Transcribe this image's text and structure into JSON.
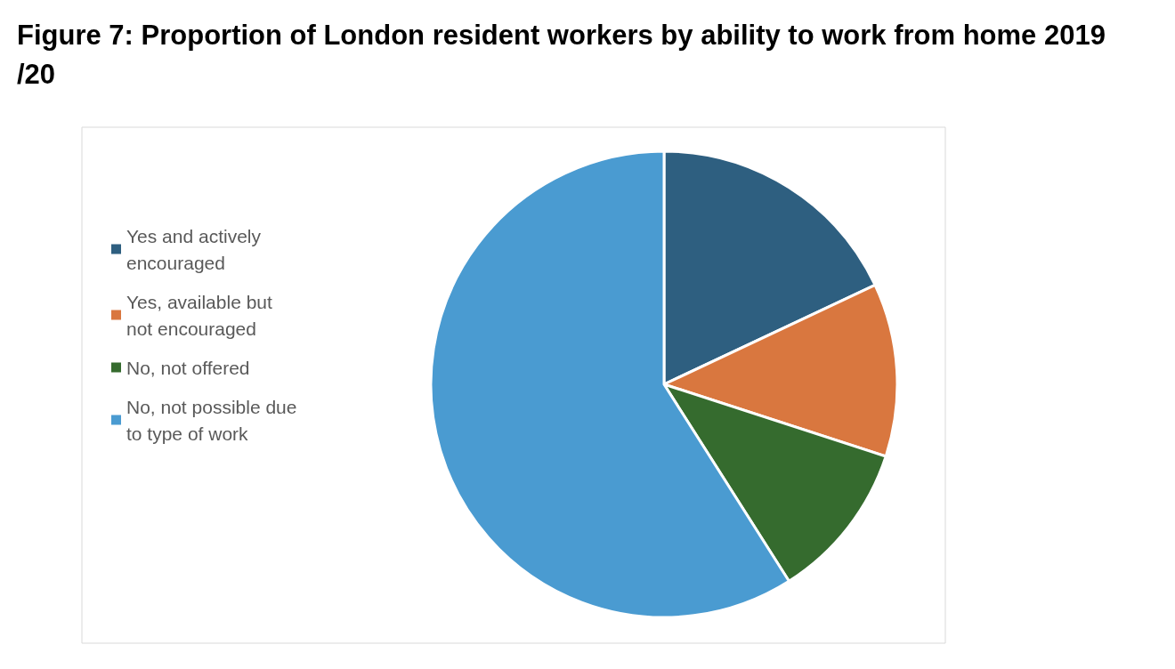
{
  "chart_data": {
    "type": "pie",
    "title": "Figure 7: Proportion of London resident workers by ability to work from home 2019/20",
    "categories": [
      "Yes and actively encouraged",
      "Yes, available but not encouraged",
      "No, not offered",
      "No, not possible due to type of work"
    ],
    "values": [
      18,
      12,
      11,
      59
    ],
    "colors": [
      "#2e5f80",
      "#d9773f",
      "#356b2e",
      "#4a9bd1"
    ],
    "legend": "left"
  }
}
